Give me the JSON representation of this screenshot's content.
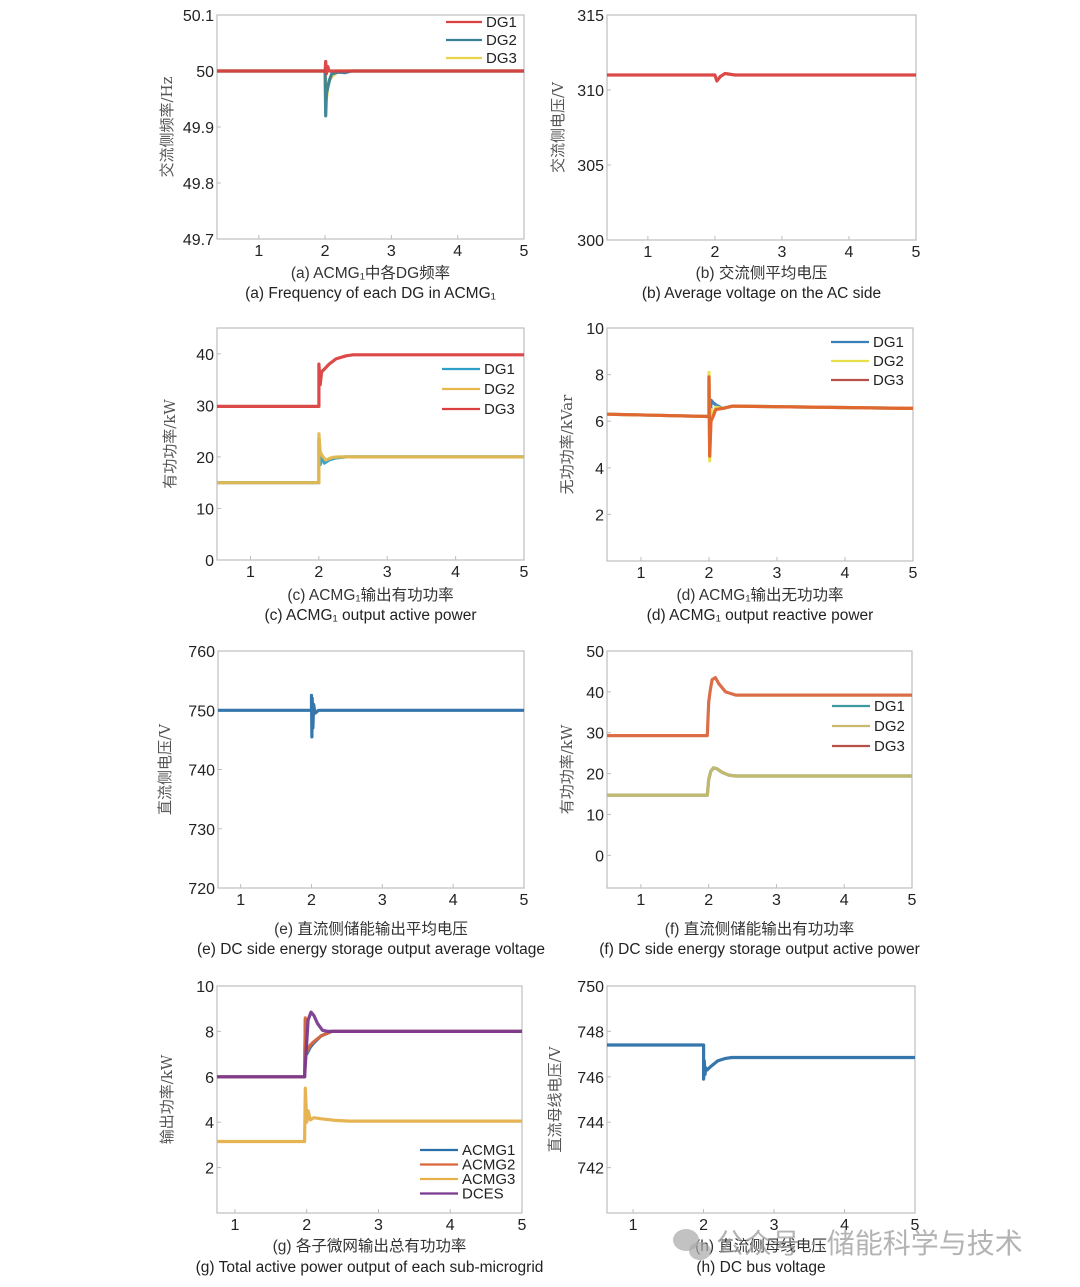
{
  "watermark": {
    "icon": "wechat-icon",
    "text": "公众号 · 储能科学与技术"
  },
  "chart_data": [
    {
      "id": "a",
      "type": "line",
      "caption_cn": "(a) ACMG₁中各DG频率",
      "caption_en": "(a) Frequency of each DG in ACMG₁",
      "xlabel": "",
      "ylabel": "交流侧频率/Hz",
      "xlim": [
        0.37,
        5
      ],
      "ylim": [
        49.7,
        50.1
      ],
      "xticks": [
        1,
        2,
        3,
        4,
        5
      ],
      "yticks": [
        49.7,
        49.8,
        49.9,
        50,
        50.1
      ],
      "ytick_labels": [
        "49.7",
        "49.8",
        "49.9",
        "50",
        "50.1"
      ],
      "legend": "top-right",
      "series": [
        {
          "name": "DG3",
          "color": "#e8d44a",
          "x": [
            0.37,
            2.0,
            2.02,
            2.05,
            2.1,
            2.2,
            2.3,
            5
          ],
          "y": [
            50.0,
            50.0,
            49.95,
            49.98,
            49.99,
            50.0,
            50.0,
            50.0
          ]
        },
        {
          "name": "DG2",
          "color": "#3a7f95",
          "x": [
            0.37,
            2.0,
            2.01,
            2.02,
            2.04,
            2.07,
            2.1,
            2.2,
            2.3,
            2.4,
            5
          ],
          "y": [
            50.0,
            50.0,
            49.92,
            49.96,
            49.97,
            49.985,
            49.995,
            49.998,
            49.997,
            50.0,
            50.0
          ]
        },
        {
          "name": "DG1",
          "color": "#d9403f",
          "x": [
            0.37,
            2.0,
            2.01,
            2.02,
            2.04,
            2.06,
            2.1,
            5
          ],
          "y": [
            50.0,
            50.0,
            50.017,
            49.995,
            50.008,
            50.0,
            50.0,
            50.0
          ]
        }
      ]
    },
    {
      "id": "b",
      "type": "line",
      "caption_cn": "(b) 交流侧平均电压",
      "caption_en": "(b) Average voltage on the AC side",
      "xlabel": "",
      "ylabel": "交流侧电压/V",
      "xlim": [
        0.39,
        5
      ],
      "ylim": [
        300,
        315
      ],
      "xticks": [
        1,
        2,
        3,
        4,
        5
      ],
      "yticks": [
        300,
        305,
        310,
        315
      ],
      "ytick_labels": [
        "300",
        "305",
        "310",
        "315"
      ],
      "legend": "none",
      "series": [
        {
          "name": "AC voltage",
          "color": "#d9403f",
          "x": [
            0.39,
            2.0,
            2.03,
            2.08,
            2.15,
            2.3,
            5
          ],
          "y": [
            311.0,
            311.0,
            310.6,
            310.9,
            311.1,
            311.0,
            311.0
          ]
        }
      ]
    },
    {
      "id": "c",
      "type": "line",
      "caption_cn": "(c) ACMG₁输出有功功率",
      "caption_en": "(c) ACMG₁ output active power",
      "xlabel": "",
      "ylabel": "有功功率/kW",
      "xlim": [
        0.51,
        5
      ],
      "ylim": [
        0,
        45
      ],
      "xticks": [
        1,
        2,
        3,
        4,
        5
      ],
      "yticks": [
        0,
        10,
        20,
        30,
        40
      ],
      "ytick_labels": [
        "0",
        "10",
        "20",
        "30",
        "40"
      ],
      "legend": "right",
      "series": [
        {
          "name": "DG1",
          "color": "#2f9fc9",
          "x": [
            0.51,
            2.0,
            2.0,
            2.02,
            2.04,
            2.08,
            2.15,
            2.25,
            2.4,
            5
          ],
          "y": [
            15,
            15,
            23.5,
            18.5,
            20.0,
            18.8,
            19.4,
            19.8,
            20.0,
            20.0
          ]
        },
        {
          "name": "DG2",
          "color": "#e6b84a",
          "x": [
            0.51,
            2.0,
            2.0,
            2.02,
            2.05,
            2.1,
            2.2,
            2.3,
            5
          ],
          "y": [
            15,
            15,
            24.5,
            21.0,
            20.2,
            19.4,
            19.9,
            20.0,
            20.0
          ]
        },
        {
          "name": "DG3",
          "color": "#d9403f",
          "x": [
            0.51,
            2.0,
            2.0,
            2.02,
            2.04,
            2.08,
            2.15,
            2.25,
            2.4,
            2.5,
            5
          ],
          "y": [
            29.8,
            29.8,
            38.0,
            34.0,
            36.5,
            37.0,
            38.0,
            39.0,
            39.6,
            39.8,
            39.8
          ]
        }
      ]
    },
    {
      "id": "d",
      "type": "line",
      "caption_cn": "(d) ACMG₁输出无功功率",
      "caption_en": "(d) ACMG₁ output reactive power",
      "xlabel": "",
      "ylabel": "无功功率/kVar",
      "xlim": [
        0.5,
        5
      ],
      "ylim": [
        0,
        10
      ],
      "xticks": [
        1,
        2,
        3,
        4,
        5
      ],
      "yticks": [
        2,
        4,
        6,
        8,
        10
      ],
      "ytick_labels": [
        "2",
        "4",
        "6",
        "8",
        "10"
      ],
      "legend": "top-right",
      "series": [
        {
          "name": "DG1",
          "color": "#3a7fb5",
          "x": [
            0.5,
            2.0,
            2.0,
            2.01,
            2.03,
            2.06,
            2.1,
            2.2,
            2.35,
            5
          ],
          "y": [
            6.3,
            6.2,
            7.8,
            4.6,
            6.9,
            6.8,
            6.7,
            6.55,
            6.65,
            6.55
          ]
        },
        {
          "name": "DG2",
          "color": "#e8e04a",
          "x": [
            0.5,
            2.0,
            2.0,
            2.01,
            2.03,
            2.06,
            2.1,
            2.2,
            2.35,
            5
          ],
          "y": [
            6.3,
            6.2,
            8.1,
            4.3,
            6.5,
            6.3,
            6.6,
            6.55,
            6.65,
            6.55
          ]
        },
        {
          "name": "DG3",
          "color": "#e0602f",
          "x": [
            0.5,
            2.0,
            2.0,
            2.01,
            2.03,
            2.06,
            2.1,
            2.2,
            2.35,
            5
          ],
          "y": [
            6.3,
            6.2,
            7.9,
            4.5,
            6.0,
            6.2,
            6.5,
            6.55,
            6.65,
            6.55
          ]
        }
      ],
      "legend_colors_override": {
        "DG3": "#b5504a"
      }
    },
    {
      "id": "e",
      "type": "line",
      "caption_cn": "(e) 直流侧储能输出平均电压",
      "caption_en": "(e) DC side energy storage output average voltage",
      "xlabel": "",
      "ylabel": "直流侧电压/V",
      "xlim": [
        0.68,
        5
      ],
      "ylim": [
        720,
        760
      ],
      "xticks": [
        1,
        2,
        3,
        4,
        5
      ],
      "yticks": [
        720,
        730,
        740,
        750,
        760
      ],
      "ytick_labels": [
        "720",
        "730",
        "740",
        "750",
        "760"
      ],
      "legend": "none",
      "series": [
        {
          "name": "DC voltage",
          "color": "#2a6fa8",
          "x": [
            0.68,
            2.0,
            2.0,
            2.005,
            2.01,
            2.02,
            2.03,
            2.05,
            2.1,
            5
          ],
          "y": [
            750,
            750,
            752.5,
            745.5,
            752.0,
            747.0,
            751.0,
            749.5,
            750,
            750
          ]
        }
      ]
    },
    {
      "id": "f",
      "type": "line",
      "caption_cn": "(f) 直流侧储能输出有功功率",
      "caption_en": "(f) DC side energy storage output active power",
      "xlabel": "",
      "ylabel": "有功功率/kW",
      "xlim": [
        0.5,
        5
      ],
      "ylim": [
        -8,
        50
      ],
      "xticks": [
        1,
        2,
        3,
        4,
        5
      ],
      "yticks": [
        0,
        10,
        20,
        30,
        40,
        50
      ],
      "ytick_labels": [
        "0",
        "10",
        "20",
        "30",
        "40",
        "50"
      ],
      "legend": "right",
      "series": [
        {
          "name": "DG1",
          "color": "#3a9aa0",
          "x": [
            0.5,
            1.98,
            2.0,
            2.03,
            2.07,
            2.12,
            2.2,
            2.3,
            2.4,
            5
          ],
          "y": [
            14.7,
            14.7,
            18.5,
            20.5,
            21.4,
            21.2,
            20.3,
            19.6,
            19.4,
            19.4
          ]
        },
        {
          "name": "DG2",
          "color": "#c9b96a",
          "x": [
            0.5,
            1.98,
            2.0,
            2.03,
            2.07,
            2.12,
            2.2,
            2.3,
            2.4,
            5
          ],
          "y": [
            14.7,
            14.7,
            18.5,
            20.5,
            21.4,
            21.2,
            20.3,
            19.6,
            19.4,
            19.4
          ]
        },
        {
          "name": "DG3",
          "color": "#d9663f",
          "x": [
            0.5,
            1.98,
            2.0,
            2.02,
            2.05,
            2.1,
            2.15,
            2.25,
            2.4,
            5
          ],
          "y": [
            29.3,
            29.3,
            37.5,
            40.0,
            43.0,
            43.5,
            42.0,
            40.0,
            39.2,
            39.2
          ]
        }
      ],
      "legend_colors_override": {
        "DG3": "#b5504a"
      }
    },
    {
      "id": "g",
      "type": "line",
      "caption_cn": "(g) 各子微网输出总有功功率",
      "caption_en": "(g) Total active power output of each sub-microgrid",
      "xlabel": "",
      "ylabel": "输出功率/kW",
      "xlim": [
        0.75,
        5
      ],
      "ylim": [
        0,
        10
      ],
      "xticks": [
        1,
        2,
        3,
        4,
        5
      ],
      "yticks": [
        2,
        4,
        6,
        8,
        10
      ],
      "ytick_labels": [
        "2",
        "4",
        "6",
        "8",
        "10"
      ],
      "legend": "bottom-right",
      "series": [
        {
          "name": "ACMG1",
          "color": "#2a6fa8",
          "x": [
            0.75,
            1.97,
            1.98,
            2.0,
            2.05,
            2.1,
            2.2,
            2.35,
            5
          ],
          "y": [
            6.0,
            6.0,
            8.5,
            7.0,
            7.3,
            7.5,
            7.8,
            8.0,
            8.0
          ]
        },
        {
          "name": "ACMG2",
          "color": "#d9663f",
          "x": [
            0.75,
            1.97,
            1.98,
            2.0,
            2.05,
            2.1,
            2.2,
            2.35,
            5
          ],
          "y": [
            6.0,
            6.0,
            8.6,
            7.1,
            7.4,
            7.55,
            7.8,
            8.0,
            8.0
          ]
        },
        {
          "name": "ACMG3",
          "color": "#e6b04a",
          "x": [
            0.75,
            1.97,
            1.98,
            2.0,
            2.02,
            2.05,
            2.1,
            2.2,
            2.4,
            2.6,
            5
          ],
          "y": [
            3.15,
            3.15,
            5.5,
            4.0,
            4.5,
            4.1,
            4.2,
            4.15,
            4.08,
            4.05,
            4.05
          ]
        },
        {
          "name": "DCES",
          "color": "#7b3a8f",
          "x": [
            0.75,
            1.97,
            1.99,
            2.02,
            2.06,
            2.1,
            2.15,
            2.22,
            2.3,
            5
          ],
          "y": [
            6.0,
            6.0,
            7.0,
            8.5,
            8.85,
            8.7,
            8.35,
            8.05,
            8.0,
            8.0
          ]
        }
      ]
    },
    {
      "id": "h",
      "type": "line",
      "caption_cn": "(h) 直流侧母线电压",
      "caption_en": "(h) DC bus voltage",
      "xlabel": "",
      "ylabel": "直流母线电压/V",
      "xlim": [
        0.63,
        5
      ],
      "ylim": [
        740,
        750
      ],
      "xticks": [
        1,
        2,
        3,
        4,
        5
      ],
      "yticks": [
        742,
        744,
        746,
        748,
        750
      ],
      "ytick_labels": [
        "742",
        "744",
        "746",
        "748",
        "750"
      ],
      "legend": "none",
      "series": [
        {
          "name": "DC bus voltage",
          "color": "#2a6fa8",
          "x": [
            0.63,
            2.0,
            2.0,
            2.01,
            2.02,
            2.03,
            2.05,
            2.1,
            2.2,
            2.3,
            2.4,
            5
          ],
          "y": [
            747.4,
            747.4,
            745.9,
            746.7,
            746.1,
            746.4,
            746.3,
            746.45,
            746.7,
            746.8,
            746.85,
            746.85
          ]
        }
      ]
    }
  ]
}
